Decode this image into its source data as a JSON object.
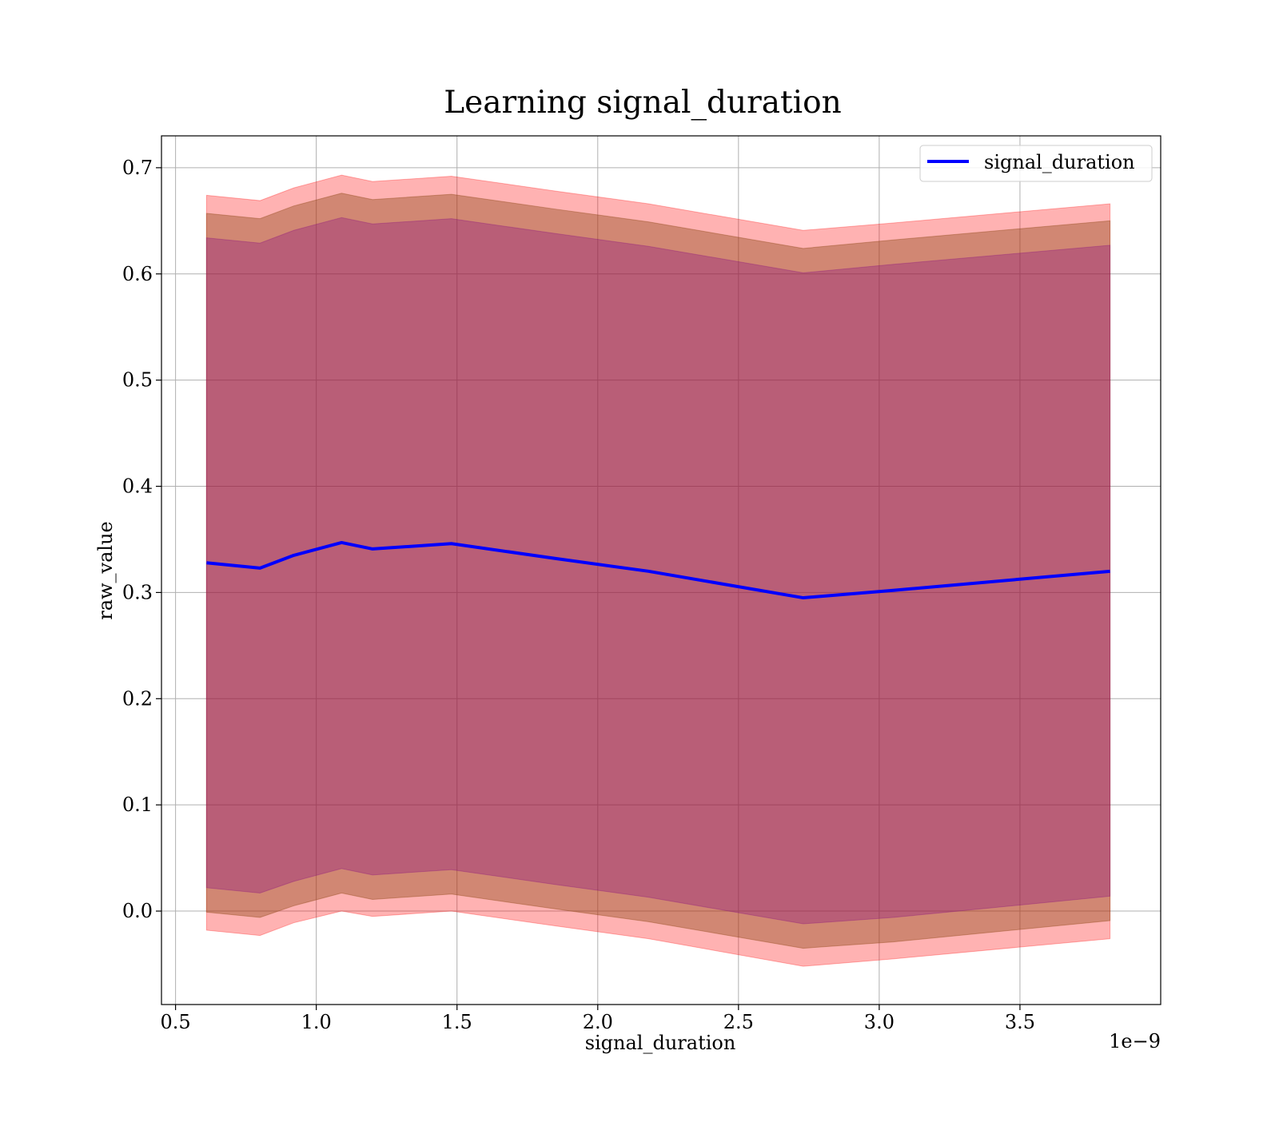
{
  "chart_data": {
    "type": "line",
    "title": "Learning signal_duration",
    "xlabel": "signal_duration",
    "ylabel": "raw_value",
    "x_offset_label": "1e−9",
    "xlim": [
      0.45,
      4.0
    ],
    "ylim": [
      -0.088,
      0.73
    ],
    "xticks": [
      0.5,
      1.0,
      1.5,
      2.0,
      2.5,
      3.0,
      3.5
    ],
    "xtick_labels": [
      "0.5",
      "1.0",
      "1.5",
      "2.0",
      "2.5",
      "3.0",
      "3.5"
    ],
    "yticks": [
      0.0,
      0.1,
      0.2,
      0.3,
      0.4,
      0.5,
      0.6,
      0.7
    ],
    "ytick_labels": [
      "0.0",
      "0.1",
      "0.2",
      "0.3",
      "0.4",
      "0.5",
      "0.6",
      "0.7"
    ],
    "grid": true,
    "legend_position": "top-right",
    "x": [
      0.61,
      0.8,
      0.92,
      1.09,
      1.2,
      1.48,
      1.85,
      2.18,
      2.73,
      3.05,
      3.82
    ],
    "series": [
      {
        "name": "signal_duration",
        "color": "#0000ff",
        "values": [
          0.328,
          0.323,
          0.335,
          0.347,
          0.341,
          0.346,
          0.332,
          0.32,
          0.295,
          0.302,
          0.32
        ]
      }
    ],
    "bands": [
      {
        "color": "#ff0000",
        "opacity": 0.3,
        "lower": [
          -0.018,
          -0.023,
          -0.011,
          0.0,
          -0.005,
          0.0,
          -0.014,
          -0.026,
          -0.052,
          -0.045,
          -0.026
        ],
        "upper": [
          0.674,
          0.669,
          0.681,
          0.693,
          0.687,
          0.692,
          0.678,
          0.666,
          0.641,
          0.648,
          0.666
        ]
      },
      {
        "color": "#8b4513",
        "opacity": 0.4,
        "lower": [
          -0.001,
          -0.006,
          0.005,
          0.017,
          0.011,
          0.016,
          0.002,
          -0.01,
          -0.035,
          -0.029,
          -0.009
        ],
        "upper": [
          0.657,
          0.652,
          0.664,
          0.676,
          0.67,
          0.675,
          0.661,
          0.649,
          0.624,
          0.632,
          0.65
        ]
      },
      {
        "color": "#800080",
        "opacity": 0.3,
        "lower": [
          0.022,
          0.017,
          0.028,
          0.04,
          0.034,
          0.039,
          0.025,
          0.013,
          -0.012,
          -0.006,
          0.014
        ],
        "upper": [
          0.634,
          0.629,
          0.641,
          0.653,
          0.647,
          0.652,
          0.638,
          0.626,
          0.601,
          0.609,
          0.627
        ]
      }
    ]
  }
}
